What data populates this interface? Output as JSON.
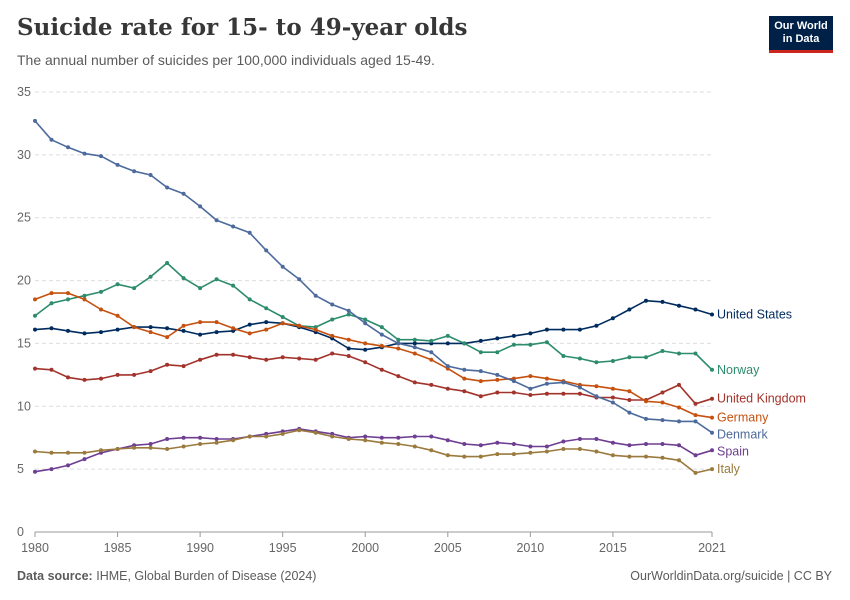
{
  "header": {
    "title": "Suicide rate for 15- to 49-year olds",
    "subtitle": "The annual number of suicides per 100,000 individuals aged 15-49."
  },
  "logo": {
    "line1": "Our World",
    "line2": "in Data",
    "bg": "#002147",
    "accent": "#ce261e"
  },
  "footer": {
    "source_label": "Data source:",
    "source_text": "IHME, Global Burden of Disease (2024)",
    "url_text": "OurWorldinData.org/suicide | CC BY"
  },
  "chart_data": {
    "type": "line",
    "xlim": [
      1980,
      2021
    ],
    "ylim": [
      0,
      35
    ],
    "xticks": [
      1980,
      1985,
      1990,
      1995,
      2000,
      2005,
      2010,
      2015,
      2021
    ],
    "yticks": [
      0,
      5,
      10,
      15,
      20,
      25,
      30,
      35
    ],
    "grid": true,
    "legend": "right-end labels",
    "x": [
      1980,
      1981,
      1982,
      1983,
      1984,
      1985,
      1986,
      1987,
      1988,
      1989,
      1990,
      1991,
      1992,
      1993,
      1994,
      1995,
      1996,
      1997,
      1998,
      1999,
      2000,
      2001,
      2002,
      2003,
      2004,
      2005,
      2006,
      2007,
      2008,
      2009,
      2010,
      2011,
      2012,
      2013,
      2014,
      2015,
      2016,
      2017,
      2018,
      2019,
      2020,
      2021
    ],
    "series": [
      {
        "name": "United States",
        "color": "#002b5e",
        "values": [
          16.1,
          16.2,
          16.0,
          15.8,
          15.9,
          16.1,
          16.3,
          16.3,
          16.2,
          16.0,
          15.7,
          15.9,
          16.0,
          16.5,
          16.7,
          16.6,
          16.3,
          15.9,
          15.4,
          14.6,
          14.5,
          14.7,
          15.0,
          15.0,
          15.0,
          15.0,
          15.0,
          15.2,
          15.4,
          15.6,
          15.8,
          16.1,
          16.1,
          16.1,
          16.4,
          17.0,
          17.7,
          18.4,
          18.3,
          18.0,
          17.7,
          17.3
        ]
      },
      {
        "name": "Norway",
        "color": "#2d8c6d",
        "values": [
          17.2,
          18.2,
          18.5,
          18.8,
          19.1,
          19.7,
          19.4,
          20.3,
          21.4,
          20.2,
          19.4,
          20.1,
          19.6,
          18.5,
          17.8,
          17.1,
          16.4,
          16.3,
          16.9,
          17.3,
          16.9,
          16.3,
          15.3,
          15.3,
          15.2,
          15.6,
          15.0,
          14.3,
          14.3,
          14.9,
          14.9,
          15.1,
          14.0,
          13.8,
          13.5,
          13.6,
          13.9,
          13.9,
          14.4,
          14.2,
          14.2,
          12.9
        ]
      },
      {
        "name": "United Kingdom",
        "color": "#a2332b",
        "values": [
          13.0,
          12.9,
          12.3,
          12.1,
          12.2,
          12.5,
          12.5,
          12.8,
          13.3,
          13.2,
          13.7,
          14.1,
          14.1,
          13.9,
          13.7,
          13.9,
          13.8,
          13.7,
          14.2,
          14.0,
          13.5,
          12.9,
          12.4,
          11.9,
          11.7,
          11.4,
          11.2,
          10.8,
          11.1,
          11.1,
          10.9,
          11.0,
          11.0,
          11.0,
          10.7,
          10.7,
          10.5,
          10.5,
          11.1,
          11.7,
          10.2,
          10.6
        ]
      },
      {
        "name": "Germany",
        "color": "#c6510f",
        "values": [
          18.5,
          19.0,
          19.0,
          18.5,
          17.7,
          17.2,
          16.3,
          15.9,
          15.5,
          16.4,
          16.7,
          16.7,
          16.2,
          15.8,
          16.1,
          16.6,
          16.4,
          16.1,
          15.6,
          15.3,
          15.0,
          14.8,
          14.6,
          14.2,
          13.7,
          13.0,
          12.2,
          12.0,
          12.1,
          12.2,
          12.4,
          12.2,
          12.0,
          11.7,
          11.6,
          11.4,
          11.2,
          10.4,
          10.3,
          9.9,
          9.3,
          9.1
        ]
      },
      {
        "name": "Denmark",
        "color": "#4c6a9c",
        "values": [
          32.7,
          31.2,
          30.6,
          30.1,
          29.9,
          29.2,
          28.7,
          28.4,
          27.4,
          26.9,
          25.9,
          24.8,
          24.3,
          23.8,
          22.4,
          21.1,
          20.1,
          18.8,
          18.1,
          17.6,
          16.6,
          15.7,
          15.0,
          14.7,
          14.3,
          13.2,
          12.9,
          12.8,
          12.5,
          12.0,
          11.4,
          11.8,
          11.9,
          11.5,
          10.8,
          10.3,
          9.5,
          9.0,
          8.9,
          8.8,
          8.8,
          7.9
        ]
      },
      {
        "name": "Spain",
        "color": "#6d3e91",
        "values": [
          4.8,
          5.0,
          5.3,
          5.8,
          6.3,
          6.6,
          6.9,
          7.0,
          7.4,
          7.5,
          7.5,
          7.4,
          7.4,
          7.6,
          7.8,
          8.0,
          8.2,
          8.0,
          7.8,
          7.5,
          7.6,
          7.5,
          7.5,
          7.6,
          7.6,
          7.3,
          7.0,
          6.9,
          7.1,
          7.0,
          6.8,
          6.8,
          7.2,
          7.4,
          7.4,
          7.1,
          6.9,
          7.0,
          7.0,
          6.9,
          6.1,
          6.5
        ]
      },
      {
        "name": "Italy",
        "color": "#9a7a3d",
        "values": [
          6.4,
          6.3,
          6.3,
          6.3,
          6.5,
          6.6,
          6.7,
          6.7,
          6.6,
          6.8,
          7.0,
          7.1,
          7.3,
          7.6,
          7.6,
          7.8,
          8.1,
          7.9,
          7.6,
          7.4,
          7.3,
          7.1,
          7.0,
          6.8,
          6.5,
          6.1,
          6.0,
          6.0,
          6.2,
          6.2,
          6.3,
          6.4,
          6.6,
          6.6,
          6.4,
          6.1,
          6.0,
          6.0,
          5.9,
          5.7,
          4.7,
          5.0
        ]
      }
    ]
  }
}
